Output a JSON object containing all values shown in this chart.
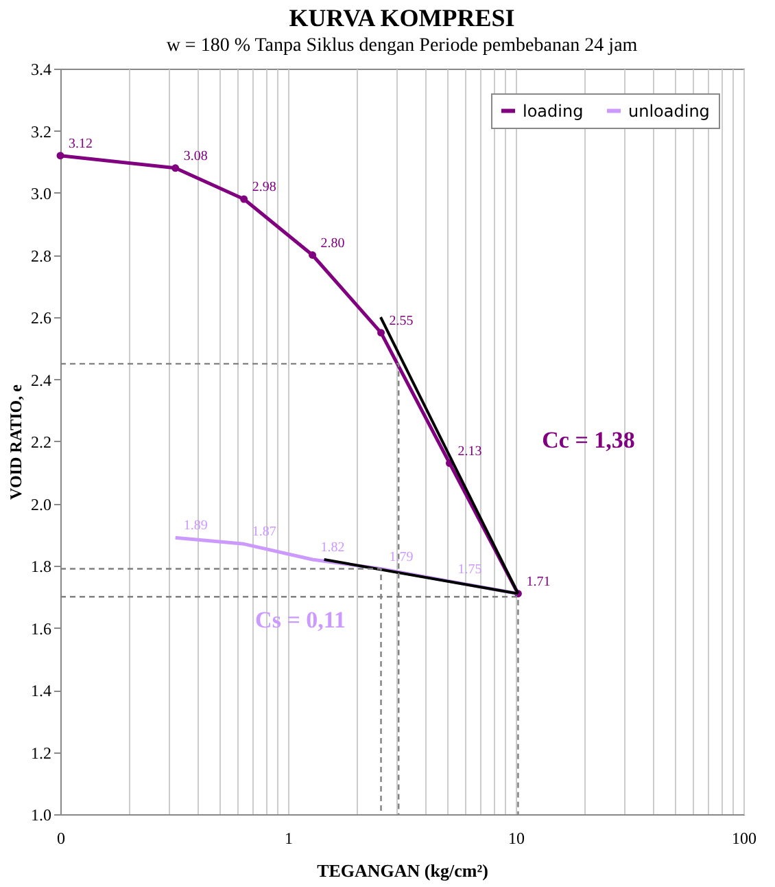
{
  "chart_data": {
    "type": "line",
    "title": "KURVA KOMPRESI",
    "subtitle": "w = 180 % Tanpa Siklus dengan Periode pembebanan 24 jam",
    "xlabel": "TEGANGAN (kg/cm²)",
    "ylabel": "VOID RATIO, e",
    "log": "x",
    "xlim": [
      0.1,
      100
    ],
    "ylim": [
      1.0,
      3.4
    ],
    "xticks": [
      {
        "value": 0.1,
        "label": "0"
      },
      {
        "value": 0.2,
        "label": null
      },
      {
        "value": 0.3,
        "label": null
      },
      {
        "value": 0.4,
        "label": null
      },
      {
        "value": 0.5,
        "label": null
      },
      {
        "value": 0.6,
        "label": null
      },
      {
        "value": 0.7,
        "label": null
      },
      {
        "value": 0.8,
        "label": null
      },
      {
        "value": 0.9,
        "label": null
      },
      {
        "value": 1,
        "label": "1"
      },
      {
        "value": 2,
        "label": null
      },
      {
        "value": 3,
        "label": null
      },
      {
        "value": 4,
        "label": null
      },
      {
        "value": 5,
        "label": null
      },
      {
        "value": 6,
        "label": null
      },
      {
        "value": 7,
        "label": null
      },
      {
        "value": 8,
        "label": null
      },
      {
        "value": 9,
        "label": null
      },
      {
        "value": 10,
        "label": "10"
      },
      {
        "value": 20,
        "label": null
      },
      {
        "value": 30,
        "label": null
      },
      {
        "value": 40,
        "label": null
      },
      {
        "value": 50,
        "label": null
      },
      {
        "value": 60,
        "label": null
      },
      {
        "value": 70,
        "label": null
      },
      {
        "value": 80,
        "label": null
      },
      {
        "value": 90,
        "label": null
      },
      {
        "value": 100,
        "label": "100"
      }
    ],
    "yticks": [
      {
        "value": 1.0,
        "label": "1.0"
      },
      1.2,
      1.4,
      1.6,
      1.8,
      {
        "value": 2.0,
        "label": "2.0"
      },
      2.2,
      2.4,
      2.6,
      2.8,
      {
        "value": 3.0,
        "label": "3.0"
      },
      3.2,
      3.4
    ],
    "grid": "x",
    "legend": "top right",
    "series": [
      {
        "name": "loading",
        "color": "#800080",
        "marker": "circle",
        "x": [
          0.1,
          0.32,
          0.64,
          1.28,
          2.56,
          5.12,
          10.24
        ],
        "values": [
          3.12,
          3.08,
          2.98,
          2.8,
          2.55,
          2.13,
          1.71
        ],
        "value_labels": [
          "3.12",
          "3.08",
          "2.98",
          "2.80",
          "2.55",
          "2.13",
          "1.71"
        ]
      },
      {
        "name": "unloading",
        "color": "#cc99ff",
        "marker": "none",
        "x": [
          0.32,
          0.64,
          1.28,
          2.56,
          5.12,
          10.24
        ],
        "values": [
          1.89,
          1.87,
          1.82,
          1.79,
          1.75,
          1.71
        ],
        "value_labels": [
          "1.89",
          "1.87",
          "1.82",
          "1.79",
          "1.75",
          null
        ]
      },
      {
        "color": "#000000",
        "marker": "none",
        "x": [
          2.55,
          10.24
        ],
        "values": [
          2.6,
          1.71
        ]
      },
      {
        "color": "#000000",
        "marker": "none",
        "x": [
          1.44,
          10.24
        ],
        "values": [
          1.82,
          1.71
        ]
      },
      {
        "color": "#808080",
        "marker": "none",
        "line_style": "dashed",
        "x": [
          0.1,
          3.06,
          3.06
        ],
        "values": [
          2.45,
          2.45,
          1.0
        ]
      },
      {
        "color": "#808080",
        "marker": "none",
        "line_style": "dashed",
        "x": [
          0.1,
          2.56,
          2.56
        ],
        "values": [
          1.79,
          1.79,
          1.0
        ]
      },
      {
        "color": "#808080",
        "marker": "none",
        "line_style": "dashed",
        "x": [
          0.1,
          10.24,
          10.24
        ],
        "values": [
          1.7,
          1.7,
          1.0
        ]
      }
    ],
    "annotations": [
      "Cc = 1,38",
      "Cs = 0,11"
    ]
  }
}
